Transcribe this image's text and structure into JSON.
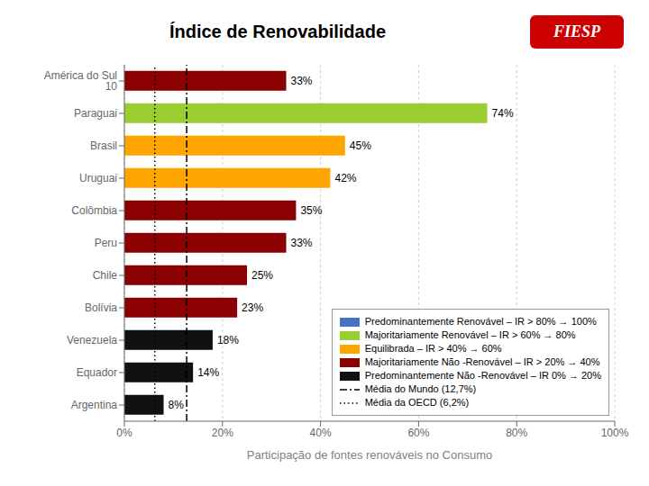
{
  "chart_data": {
    "type": "bar",
    "orientation": "horizontal",
    "title": "Índice de Renovabilidade",
    "categories": [
      "América do Sul 10",
      "Paraguai",
      "Brasil",
      "Uruguai",
      "Colômbia",
      "Peru",
      "Chile",
      "Bolívia",
      "Venezuela",
      "Equador",
      "Argentina"
    ],
    "values": [
      33,
      74,
      45,
      42,
      35,
      33,
      25,
      23,
      18,
      14,
      8
    ],
    "value_labels": [
      "33%",
      "74%",
      "45%",
      "42%",
      "35%",
      "33%",
      "25%",
      "23%",
      "18%",
      "14%",
      "8%"
    ],
    "data_labels": true,
    "colors": [
      "#8B0000",
      "#9ACD32",
      "#FFA500",
      "#FFA500",
      "#8B0000",
      "#8B0000",
      "#8B0000",
      "#8B0000",
      "#111111",
      "#111111",
      "#111111"
    ],
    "xlabel": "Participação de fontes renováveis no Consumo",
    "xlim": [
      0,
      100
    ],
    "xticks": [
      {
        "value": 0,
        "label": "0%"
      },
      {
        "value": 20,
        "label": "20%"
      },
      {
        "value": 40,
        "label": "40%"
      },
      {
        "value": 60,
        "label": "60%"
      },
      {
        "value": 80,
        "label": "80%"
      },
      {
        "value": 100,
        "label": "100%"
      }
    ],
    "grid": true,
    "legend": "lower right",
    "legend_items": [
      {
        "name": "Predominantemente Renovável – IR > 80% → 100%",
        "color": "#4472C4"
      },
      {
        "name": "Majoritariamente Renovável – IR > 60% → 80%",
        "color": "#9ACD32"
      },
      {
        "name": "Equilibrada – IR > 40% → 60%",
        "color": "#FFA500"
      },
      {
        "name": "Majoritariamente Não -Renovável – IR > 20% → 40%",
        "color": "#8B0000"
      },
      {
        "name": "Predominantemente Não -Renovável – IR 0% → 20%",
        "color": "#111111"
      }
    ],
    "reference_lines": [
      {
        "name": "Média do Mundo (12,7%)",
        "value": 12.7,
        "line_style": "dashdot",
        "color": "#000000"
      },
      {
        "name": "Média da OECD (6,2%)",
        "value": 6.2,
        "line_style": "dotted",
        "color": "#000000"
      }
    ],
    "annotations": [
      {
        "text": "FIESP",
        "color": "#CC0000"
      }
    ]
  }
}
